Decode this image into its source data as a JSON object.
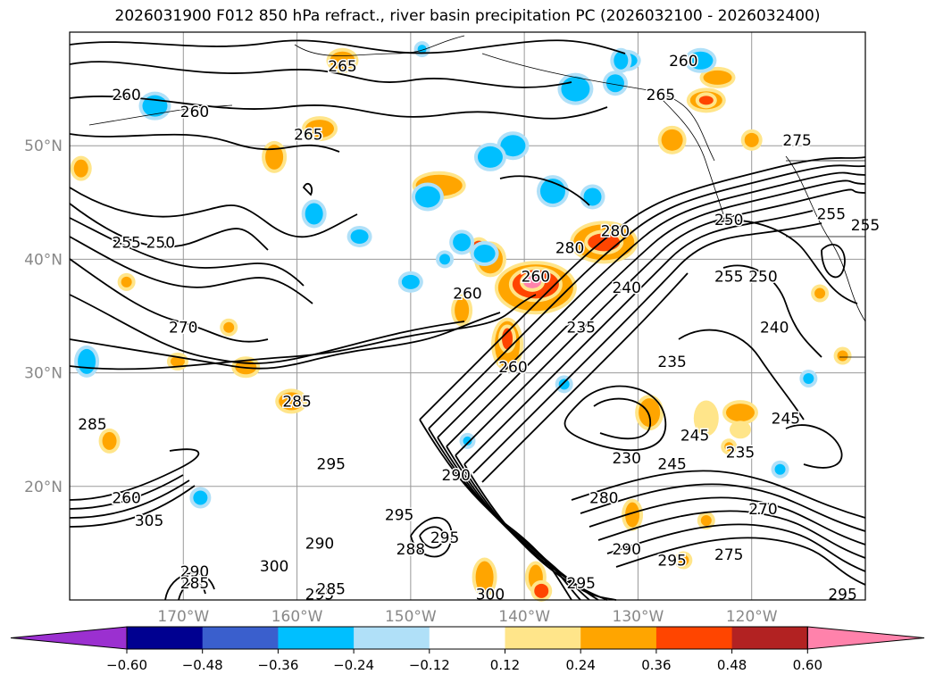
{
  "title": "2026031900 F012 850 hPa refract., river basin precipitation PC (2026032100 - 2026032400)",
  "axes": {
    "lat_labels": [
      {
        "text": "50°N",
        "lat": 50
      },
      {
        "text": "40°N",
        "lat": 40
      },
      {
        "text": "30°N",
        "lat": 30
      },
      {
        "text": "20°N",
        "lat": 20
      }
    ],
    "lon_labels": [
      {
        "text": "170°W",
        "lon": -170
      },
      {
        "text": "160°W",
        "lon": -160
      },
      {
        "text": "150°W",
        "lon": -150
      },
      {
        "text": "140°W",
        "lon": -140
      },
      {
        "text": "130°W",
        "lon": -130
      },
      {
        "text": "120°W",
        "lon": -120
      }
    ],
    "extent": {
      "lon_min": -180,
      "lon_max": -110,
      "lat_min": 10,
      "lat_max": 60
    }
  },
  "contour_labels": [
    {
      "text": "260",
      "lon": -175,
      "lat": 54.5
    },
    {
      "text": "260",
      "lon": -169,
      "lat": 53.0
    },
    {
      "text": "265",
      "lon": -156,
      "lat": 57.0
    },
    {
      "text": "265",
      "lon": -159,
      "lat": 51.0
    },
    {
      "text": "260",
      "lon": -126,
      "lat": 57.5
    },
    {
      "text": "265",
      "lon": -128,
      "lat": 54.5
    },
    {
      "text": "275",
      "lon": -116,
      "lat": 50.5
    },
    {
      "text": "255",
      "lon": -175,
      "lat": 41.5
    },
    {
      "text": "250",
      "lon": -172,
      "lat": 41.5
    },
    {
      "text": "255",
      "lon": -113,
      "lat": 44.0
    },
    {
      "text": "250",
      "lon": -122,
      "lat": 43.5
    },
    {
      "text": "255",
      "lon": -110,
      "lat": 43.0
    },
    {
      "text": "280",
      "lon": -132,
      "lat": 42.5
    },
    {
      "text": "280",
      "lon": -136,
      "lat": 41.0
    },
    {
      "text": "260",
      "lon": -139,
      "lat": 38.5
    },
    {
      "text": "260",
      "lon": -145,
      "lat": 37.0
    },
    {
      "text": "255",
      "lon": -122,
      "lat": 38.5
    },
    {
      "text": "250",
      "lon": -119,
      "lat": 38.5
    },
    {
      "text": "240",
      "lon": -131,
      "lat": 37.5
    },
    {
      "text": "270",
      "lon": -170,
      "lat": 34.0
    },
    {
      "text": "235",
      "lon": -135,
      "lat": 34.0
    },
    {
      "text": "240",
      "lon": -118,
      "lat": 34.0
    },
    {
      "text": "235",
      "lon": -127,
      "lat": 31.0
    },
    {
      "text": "260",
      "lon": -141,
      "lat": 30.5
    },
    {
      "text": "285",
      "lon": -160,
      "lat": 27.5
    },
    {
      "text": "285",
      "lon": -178,
      "lat": 25.5
    },
    {
      "text": "245",
      "lon": -125,
      "lat": 24.5
    },
    {
      "text": "245",
      "lon": -117,
      "lat": 26.0
    },
    {
      "text": "230",
      "lon": -131,
      "lat": 22.5
    },
    {
      "text": "245",
      "lon": -127,
      "lat": 22.0
    },
    {
      "text": "235",
      "lon": -121,
      "lat": 23.0
    },
    {
      "text": "295",
      "lon": -157,
      "lat": 22.0
    },
    {
      "text": "290",
      "lon": -146,
      "lat": 21.0
    },
    {
      "text": "260",
      "lon": -175,
      "lat": 19.0
    },
    {
      "text": "305",
      "lon": -173,
      "lat": 17.0
    },
    {
      "text": "295",
      "lon": -151,
      "lat": 17.5
    },
    {
      "text": "280",
      "lon": -133,
      "lat": 19.0
    },
    {
      "text": "290",
      "lon": -158,
      "lat": 15.0
    },
    {
      "text": "300",
      "lon": -162,
      "lat": 13.0
    },
    {
      "text": "288",
      "lon": -150,
      "lat": 14.5
    },
    {
      "text": "295",
      "lon": -147,
      "lat": 15.5
    },
    {
      "text": "290",
      "lon": -131,
      "lat": 14.5
    },
    {
      "text": "295",
      "lon": -127,
      "lat": 13.5
    },
    {
      "text": "295",
      "lon": -135,
      "lat": 11.5
    },
    {
      "text": "295",
      "lon": -158,
      "lat": 10.5
    },
    {
      "text": "300",
      "lon": -143,
      "lat": 10.5
    },
    {
      "text": "285",
      "lon": -157,
      "lat": 11.0
    },
    {
      "text": "290",
      "lon": -169,
      "lat": 12.5
    },
    {
      "text": "285",
      "lon": -169,
      "lat": 11.5
    },
    {
      "text": "295",
      "lon": -112,
      "lat": 10.5
    },
    {
      "text": "275",
      "lon": -122,
      "lat": 14.0
    },
    {
      "text": "270",
      "lon": -119,
      "lat": 18.0
    }
  ],
  "colorbar": {
    "ticks": [
      "−0.60",
      "−0.48",
      "−0.36",
      "−0.24",
      "−0.12",
      "0.12",
      "0.24",
      "0.36",
      "0.48",
      "0.60"
    ],
    "colors": [
      "#9b30d0",
      "#000090",
      "#3a5fcd",
      "#00bfff",
      "#b0e0f8",
      "#ffffff",
      "#ffe58a",
      "#ffa500",
      "#ff4500",
      "#b22222",
      "#ff82ab",
      "#ff82ab"
    ],
    "under_color": "#9b30d0",
    "over_color": "#ff82ab"
  },
  "shading_colors": {
    "light_yellow": "#ffe58a",
    "orange": "#ffa500",
    "red_orange": "#ff4500",
    "pink": "#ff82ab",
    "blue": "#00bfff",
    "light_blue": "#b0e0f8"
  }
}
